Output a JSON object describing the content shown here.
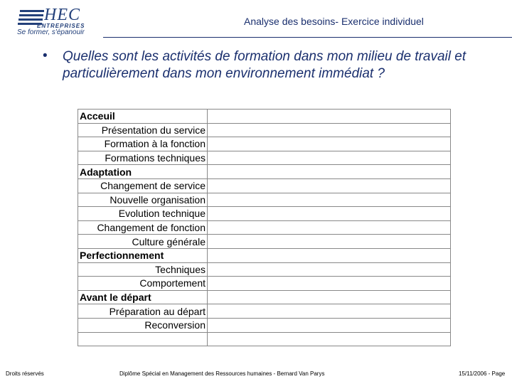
{
  "header": {
    "logo": {
      "name": "HEC",
      "subname": "ENTREPRISES",
      "tagline": "Se former, s'épanouir"
    },
    "title": "Analyse des besoins- Exercice individuel"
  },
  "bullet": "Quelles sont les activités de formation dans mon milieu de travail et particulièrement dans mon environnement immédiat ?",
  "table": {
    "sections": [
      {
        "title": "Acceuil",
        "items": [
          "Présentation du service",
          "Formation à la fonction",
          "Formations techniques"
        ]
      },
      {
        "title": "Adaptation",
        "items": [
          "Changement de service",
          "Nouvelle organisation",
          "Evolution technique",
          "Changement de fonction",
          "Culture générale"
        ]
      },
      {
        "title": "Perfectionnement",
        "items": [
          "Techniques",
          "Comportement"
        ]
      },
      {
        "title": "Avant le départ",
        "items": [
          "Préparation au départ",
          "Reconversion"
        ]
      }
    ]
  },
  "footer": {
    "left": "Droits réservés",
    "center": "Diplôme Spécial en Management des Ressources humaines - Bernard Van Parys",
    "right": "15/11/2006 - Page"
  }
}
